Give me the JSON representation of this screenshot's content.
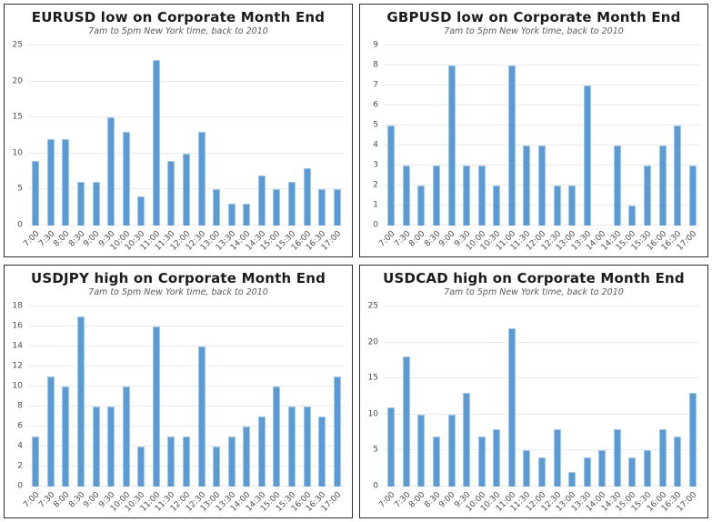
{
  "colors": {
    "bar_fill": "#5b9bd5",
    "bar_edge": "#a3c7e8",
    "gridline": "#eaeaea",
    "panel_border": "#2d2d2d",
    "title_text": "#1c1c1c",
    "subtitle_text": "#595959",
    "axis_label_text": "#4d4d4d",
    "background": "#ffffff"
  },
  "chart_data": [
    {
      "type": "bar",
      "title": "EURUSD low on Corporate Month End",
      "subtitle": "7am to 5pm New York time, back to 2010",
      "categories": [
        "7:00",
        "7:30",
        "8:00",
        "8:30",
        "9:00",
        "9:30",
        "10:00",
        "10:30",
        "11:00",
        "11:30",
        "12:00",
        "12:30",
        "13:00",
        "13:30",
        "14:00",
        "14:30",
        "15:00",
        "15:30",
        "16:00",
        "16:30",
        "17:00"
      ],
      "values": [
        9,
        12,
        12,
        6,
        6,
        15,
        13,
        4,
        23,
        9,
        10,
        13,
        5,
        3,
        3,
        7,
        5,
        6,
        8,
        5,
        5
      ],
      "xlabel": "",
      "ylabel": "",
      "ylim": [
        0,
        25
      ],
      "ytick_step": 5,
      "grid": true,
      "legend": "none"
    },
    {
      "type": "bar",
      "title": "GBPUSD low on Corporate Month End",
      "subtitle": "7am to 5pm New York time, back to 2010",
      "categories": [
        "7:00",
        "7:30",
        "8:00",
        "8:30",
        "9:00",
        "9:30",
        "10:00",
        "10:30",
        "11:00",
        "11:30",
        "12:00",
        "12:30",
        "13:00",
        "13:30",
        "14:00",
        "14:30",
        "15:00",
        "15:30",
        "16:00",
        "16:30",
        "17:00"
      ],
      "values": [
        5,
        3,
        2,
        3,
        8,
        3,
        3,
        2,
        8,
        4,
        4,
        2,
        2,
        7,
        0,
        4,
        1,
        3,
        4,
        5,
        3
      ],
      "xlabel": "",
      "ylabel": "",
      "ylim": [
        0,
        9
      ],
      "ytick_step": 1,
      "grid": true,
      "legend": "none"
    },
    {
      "type": "bar",
      "title": "USDJPY high on Corporate Month End",
      "subtitle": "7am to 5pm New York time, back to 2010",
      "categories": [
        "7:00",
        "7:30",
        "8:00",
        "8:30",
        "9:00",
        "9:30",
        "10:00",
        "10:30",
        "11:00",
        "11:30",
        "12:00",
        "12:30",
        "13:00",
        "13:30",
        "14:00",
        "14:30",
        "15:00",
        "15:30",
        "16:00",
        "16:30",
        "17:00"
      ],
      "values": [
        5,
        11,
        10,
        17,
        8,
        8,
        10,
        4,
        16,
        5,
        5,
        14,
        4,
        5,
        6,
        7,
        10,
        8,
        8,
        7,
        11
      ],
      "xlabel": "",
      "ylabel": "",
      "ylim": [
        0,
        18
      ],
      "ytick_step": 2,
      "grid": true,
      "legend": "none"
    },
    {
      "type": "bar",
      "title": "USDCAD high on Corporate Month End",
      "subtitle": "7am to 5pm New York time, back to 2010",
      "categories": [
        "7:00",
        "7:30",
        "8:00",
        "8:30",
        "9:00",
        "9:30",
        "10:00",
        "10:30",
        "11:00",
        "11:30",
        "12:00",
        "12:30",
        "13:00",
        "13:30",
        "14:00",
        "14:30",
        "15:00",
        "15:30",
        "16:00",
        "16:30",
        "17:00"
      ],
      "values": [
        11,
        18,
        10,
        7,
        10,
        13,
        7,
        8,
        22,
        5,
        4,
        8,
        2,
        4,
        5,
        8,
        4,
        5,
        8,
        7,
        13
      ],
      "xlabel": "",
      "ylabel": "",
      "ylim": [
        0,
        25
      ],
      "ytick_step": 5,
      "grid": true,
      "legend": "none"
    }
  ]
}
